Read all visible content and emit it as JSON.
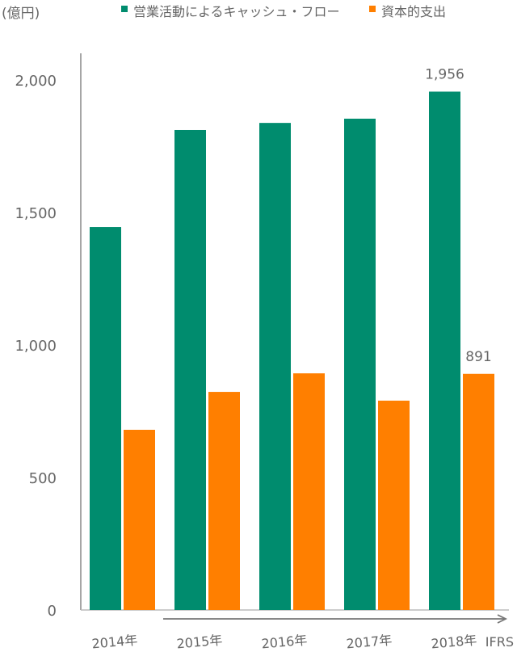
{
  "chart_data": {
    "type": "bar",
    "unit_label": "(億円)",
    "categories": [
      "2014年",
      "2015年",
      "2016年",
      "2017年",
      "2018年"
    ],
    "series": [
      {
        "name": "営業活動によるキャッシュ・フロー",
        "color": "#008c6e",
        "values": [
          1445,
          1811,
          1838,
          1854,
          1956
        ]
      },
      {
        "name": "資本的支出",
        "color": "#ff7f00",
        "values": [
          680,
          823,
          893,
          790,
          891
        ]
      }
    ],
    "data_labels": [
      {
        "series": 0,
        "index": 4,
        "text": "1,956"
      },
      {
        "series": 1,
        "index": 4,
        "text": "891"
      }
    ],
    "yticks": [
      {
        "v": 0,
        "label": "0"
      },
      {
        "v": 500,
        "label": "500"
      },
      {
        "v": 1000,
        "label": "1,000"
      },
      {
        "v": 1500,
        "label": "1,500"
      },
      {
        "v": 2000,
        "label": "2,000"
      }
    ],
    "ylim": [
      0,
      2000
    ],
    "grid": false,
    "legend": "top",
    "annotation": "IFRS"
  }
}
